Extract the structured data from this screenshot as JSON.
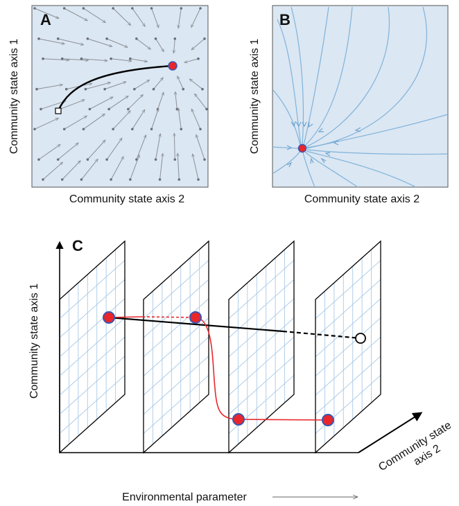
{
  "panel_a": {
    "letter": "A",
    "y_axis_label": "Community state axis 1",
    "x_axis_label": "Community state axis 2"
  },
  "panel_b": {
    "letter": "B",
    "y_axis_label": "Community state axis 1",
    "x_axis_label": "Community state axis 2"
  },
  "panel_c": {
    "letter": "C",
    "y_axis_label": "Community state axis 1",
    "depth_axis_label_line1": "Community state",
    "depth_axis_label_line2": "axis 2",
    "x_axis_label": "Environmental parameter",
    "x_axis_arrow": "→"
  },
  "colors": {
    "panel_bg": "#dbe7f3",
    "arrow": "#8a8f96",
    "flow_line": "#7fb2d9",
    "equilibrium_fill": "#e8262b",
    "equilibrium_stroke": "#3b55b0",
    "grid_line": "#a9c9e6",
    "red_path": "#e8262b"
  }
}
